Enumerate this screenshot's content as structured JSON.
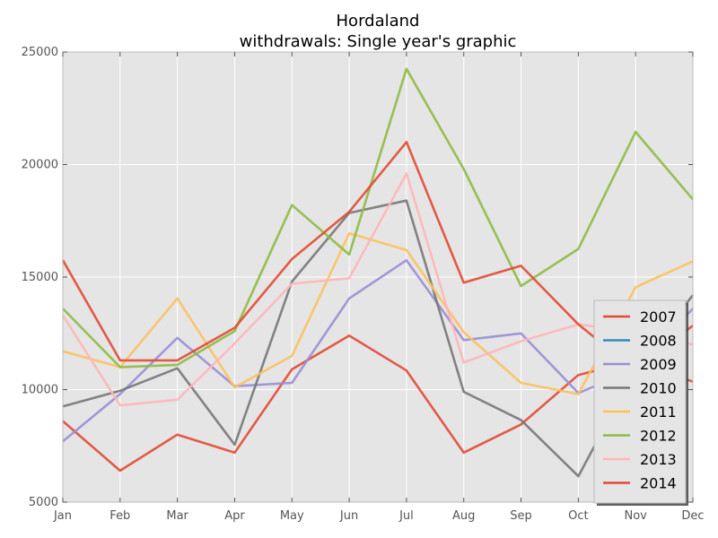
{
  "chart_data": {
    "type": "line",
    "title": "Hordaland",
    "subtitle": "withdrawals: Single year's graphic",
    "xlabel": "",
    "ylabel": "",
    "categories": [
      "Jan",
      "Feb",
      "Mar",
      "Apr",
      "May",
      "Jun",
      "Jul",
      "Aug",
      "Sep",
      "Oct",
      "Nov",
      "Dec"
    ],
    "ylim": [
      5000,
      25000
    ],
    "yticks": [
      "5000",
      "10000",
      "15000",
      "20000",
      "25000"
    ],
    "grid": true,
    "legend_position": "bottom-right",
    "series": [
      {
        "name": "2007",
        "color": "#E24A33",
        "values": [
          8600,
          6400,
          8000,
          7200,
          10900,
          12400,
          10850,
          7200,
          8450,
          10650,
          11300,
          10350
        ]
      },
      {
        "name": "2008",
        "color": "#348ABD",
        "values": [
          null,
          null,
          null,
          null,
          null,
          null,
          null,
          null,
          null,
          null,
          null,
          null
        ]
      },
      {
        "name": "2009",
        "color": "#988ED5",
        "values": [
          7700,
          9800,
          12300,
          10150,
          10300,
          14050,
          15750,
          12200,
          12500,
          9850,
          10900,
          13600
        ]
      },
      {
        "name": "2010",
        "color": "#777777",
        "values": [
          9250,
          9950,
          10950,
          7550,
          14800,
          17850,
          18400,
          9900,
          8650,
          6150,
          10900,
          14200
        ]
      },
      {
        "name": "2011",
        "color": "#FBC15E",
        "values": [
          11700,
          11000,
          14050,
          10100,
          11500,
          16950,
          16200,
          12550,
          10300,
          9800,
          14550,
          15700
        ]
      },
      {
        "name": "2012",
        "color": "#8EBA42",
        "values": [
          13600,
          11000,
          11100,
          12600,
          18200,
          16000,
          24250,
          19800,
          14600,
          16250,
          21450,
          18450
        ]
      },
      {
        "name": "2013",
        "color": "#FFB5B8",
        "values": [
          13300,
          9300,
          9550,
          12050,
          14700,
          14950,
          19600,
          11200,
          12150,
          12900,
          12550,
          12000
        ]
      },
      {
        "name": "2014",
        "color": "#E24A33",
        "values": [
          15750,
          11300,
          11300,
          12750,
          15800,
          17900,
          21000,
          14750,
          15500,
          12900,
          10850,
          12850
        ]
      }
    ]
  }
}
